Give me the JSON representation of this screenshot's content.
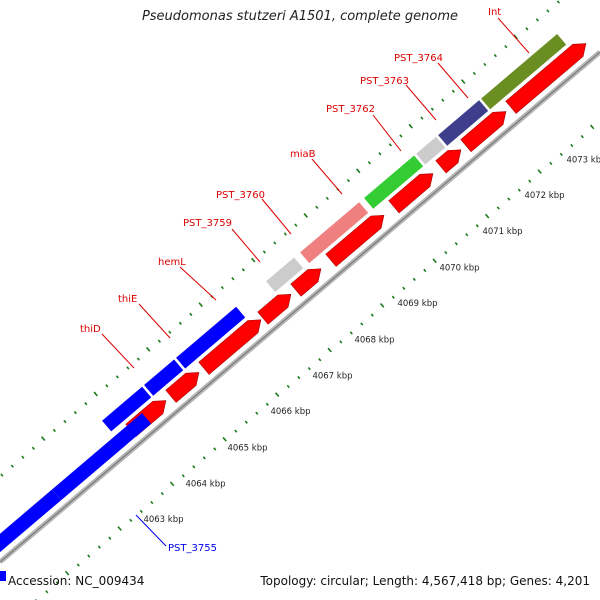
{
  "title": "Pseudomonas stutzeri A1501, complete genome",
  "footer": {
    "accession": "Accession: NC_009434",
    "topology": "Topology: circular; Length: 4,567,418 bp; Genes: 4,201"
  },
  "colors": {
    "backbone": "#b5b5b5",
    "cds_arrow": "#ff0000",
    "tick": "#1a7a1a",
    "label_red": "#dd0000",
    "label_blue": "#0000ee"
  },
  "axis_ticks": [
    "4063 kbp",
    "4064 kbp",
    "4065 kbp",
    "4066 kbp",
    "4067 kbp",
    "4068 kbp",
    "4069 kbp",
    "4070 kbp",
    "4071 kbp",
    "4072 kbp",
    "4073 kbp"
  ],
  "gene_labels": [
    {
      "id": "pst3755",
      "text": "PST_3755",
      "color": "blue"
    },
    {
      "id": "thid",
      "text": "thiD",
      "color": "red"
    },
    {
      "id": "thie",
      "text": "thiE",
      "color": "red"
    },
    {
      "id": "heml",
      "text": "hemL",
      "color": "red"
    },
    {
      "id": "pst3759",
      "text": "PST_3759",
      "color": "red"
    },
    {
      "id": "pst3760",
      "text": "PST_3760",
      "color": "red"
    },
    {
      "id": "miab",
      "text": "miaB",
      "color": "red"
    },
    {
      "id": "pst3762",
      "text": "PST_3762",
      "color": "red"
    },
    {
      "id": "pst3763",
      "text": "PST_3763",
      "color": "red"
    },
    {
      "id": "pst3764",
      "text": "PST_3764",
      "color": "red"
    },
    {
      "id": "int",
      "text": "Int",
      "color": "red"
    }
  ],
  "gene_colors": {
    "pst3755": "#0000ff",
    "thid": "#0000ff",
    "thie": "#0000ff",
    "heml": "#0000ff",
    "pst3759": "#cccccc",
    "pst3760": "#cccccc",
    "miab": "#f08080",
    "pst3762": "#33cc33",
    "pst3763": "#cccccc",
    "pst3764": "#3e3e8c",
    "int": "#6b8e23"
  }
}
